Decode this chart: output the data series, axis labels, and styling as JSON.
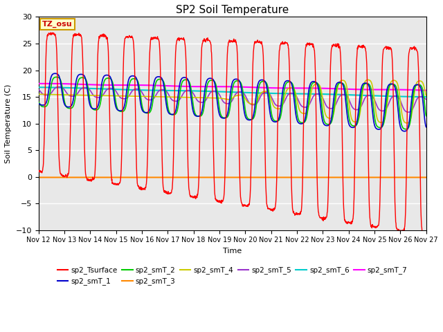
{
  "title": "SP2 Soil Temperature",
  "xlabel": "Time",
  "ylabel": "Soil Temperature (C)",
  "ylim": [
    -10,
    30
  ],
  "yticks": [
    -10,
    -5,
    0,
    5,
    10,
    15,
    20,
    25,
    30
  ],
  "xlim": [
    12,
    27
  ],
  "x_labels": [
    "Nov 12",
    "Nov 13",
    "Nov 14",
    "Nov 15",
    "Nov 16",
    "Nov 17",
    "Nov 18",
    "Nov 19",
    "Nov 20",
    "Nov 21",
    "Nov 22",
    "Nov 23",
    "Nov 24",
    "Nov 25",
    "Nov 26",
    "Nov 27"
  ],
  "bg_color": "#e8e8e8",
  "grid_color": "#ffffff",
  "tz_label": "TZ_osu",
  "tz_bg": "#ffffcc",
  "tz_border": "#cc9900",
  "tz_text_color": "#cc0000",
  "series_colors": {
    "sp2_Tsurface": "#ff0000",
    "sp2_smT_1": "#0000cc",
    "sp2_smT_2": "#00cc00",
    "sp2_smT_3": "#ff8800",
    "sp2_smT_4": "#cccc00",
    "sp2_smT_5": "#9933cc",
    "sp2_smT_6": "#00cccc",
    "sp2_smT_7": "#ff00ff"
  },
  "legend_order": [
    "sp2_Tsurface",
    "sp2_smT_1",
    "sp2_smT_2",
    "sp2_smT_3",
    "sp2_smT_4",
    "sp2_smT_5",
    "sp2_smT_6",
    "sp2_smT_7"
  ]
}
